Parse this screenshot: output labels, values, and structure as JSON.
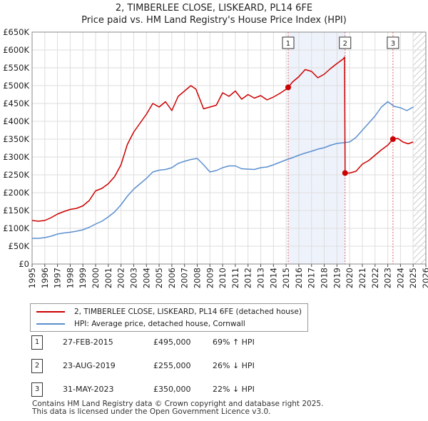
{
  "title_line1": "2, TIMBERLEE CLOSE, LISKEARD, PL14 6FE",
  "title_line2": "Price paid vs. HM Land Registry's House Price Index (HPI)",
  "colors": {
    "property": "#cc0000",
    "hpi": "#5b8fd0",
    "shade": "#eef2fb",
    "marker_line": "#dd6666",
    "hatch": "#bbbbbb",
    "grid": "#dddddd"
  },
  "legend": {
    "property_label": "2, TIMBERLEE CLOSE, LISKEARD, PL14 6FE (detached house)",
    "hpi_label": "HPI: Average price, detached house, Cornwall"
  },
  "transactions": [
    {
      "num": "1",
      "date": "27-FEB-2015",
      "price": "£495,000",
      "hpi": "69% ↑ HPI"
    },
    {
      "num": "2",
      "date": "23-AUG-2019",
      "price": "£255,000",
      "hpi": "26% ↓ HPI"
    },
    {
      "num": "3",
      "date": "31-MAY-2023",
      "price": "£350,000",
      "hpi": "22% ↓ HPI"
    }
  ],
  "footer_line1": "Contains HM Land Registry data © Crown copyright and database right 2025.",
  "footer_line2": "This data is licensed under the Open Government Licence v3.0.",
  "chart_data": {
    "type": "line",
    "title": "2, TIMBERLEE CLOSE, LISKEARD, PL14 6FE",
    "subtitle": "Price paid vs. HM Land Registry's House Price Index (HPI)",
    "xlabel": "",
    "ylabel": "",
    "xlim": [
      1995,
      2026
    ],
    "ylim": [
      0,
      650000
    ],
    "grid": true,
    "x_ticks": [
      1995,
      1996,
      1997,
      1998,
      1999,
      2000,
      2001,
      2002,
      2003,
      2004,
      2005,
      2006,
      2007,
      2008,
      2009,
      2010,
      2011,
      2012,
      2013,
      2014,
      2015,
      2016,
      2017,
      2018,
      2019,
      2020,
      2021,
      2022,
      2023,
      2024,
      2025,
      2026
    ],
    "y_ticks": [
      0,
      50000,
      100000,
      150000,
      200000,
      250000,
      300000,
      350000,
      400000,
      450000,
      500000,
      550000,
      600000,
      650000
    ],
    "y_tick_labels": [
      "£0",
      "£50K",
      "£100K",
      "£150K",
      "£200K",
      "£250K",
      "£300K",
      "£350K",
      "£400K",
      "£450K",
      "£500K",
      "£550K",
      "£600K",
      "£650K"
    ],
    "shaded_region": [
      2015.16,
      2019.64
    ],
    "hatched_from": 2025.0,
    "series": [
      {
        "name": "2, TIMBERLEE CLOSE, LISKEARD, PL14 6FE (detached house)",
        "x": [
          1995.0,
          1995.5,
          1996.0,
          1996.5,
          1997.0,
          1997.5,
          1998.0,
          1998.5,
          1999.0,
          1999.5,
          2000.0,
          2000.5,
          2001.0,
          2001.5,
          2002.0,
          2002.5,
          2003.0,
          2003.5,
          2004.0,
          2004.5,
          2005.0,
          2005.5,
          2006.0,
          2006.5,
          2007.0,
          2007.5,
          2007.9,
          2008.5,
          2009.0,
          2009.5,
          2010.0,
          2010.5,
          2011.0,
          2011.5,
          2012.0,
          2012.5,
          2013.0,
          2013.5,
          2014.0,
          2014.5,
          2015.0,
          2015.16,
          2015.5,
          2016.0,
          2016.5,
          2017.0,
          2017.5,
          2018.0,
          2018.5,
          2019.0,
          2019.5,
          2019.6,
          2019.64,
          2020.0,
          2020.5,
          2021.0,
          2021.5,
          2022.0,
          2022.5,
          2023.0,
          2023.41,
          2023.8,
          2024.2,
          2024.6,
          2025.0
        ],
        "values": [
          122000,
          120000,
          122000,
          130000,
          140000,
          147000,
          153000,
          156000,
          163000,
          178000,
          205000,
          212000,
          225000,
          245000,
          278000,
          335000,
          370000,
          395000,
          420000,
          450000,
          440000,
          455000,
          430000,
          470000,
          485000,
          500000,
          490000,
          435000,
          440000,
          445000,
          480000,
          470000,
          485000,
          462000,
          475000,
          465000,
          472000,
          460000,
          468000,
          478000,
          490000,
          495000,
          510000,
          525000,
          545000,
          540000,
          522000,
          532000,
          548000,
          562000,
          575000,
          580000,
          255000,
          255000,
          260000,
          280000,
          290000,
          305000,
          320000,
          333000,
          350000,
          352000,
          342000,
          337000,
          342000
        ]
      },
      {
        "name": "HPI: Average price, detached house, Cornwall",
        "x": [
          1995.0,
          1995.5,
          1996.0,
          1996.5,
          1997.0,
          1997.5,
          1998.0,
          1998.5,
          1999.0,
          1999.5,
          2000.0,
          2000.5,
          2001.0,
          2001.5,
          2002.0,
          2002.5,
          2003.0,
          2003.5,
          2004.0,
          2004.5,
          2005.0,
          2005.5,
          2006.0,
          2006.5,
          2007.0,
          2007.5,
          2008.0,
          2008.5,
          2009.0,
          2009.5,
          2010.0,
          2010.5,
          2011.0,
          2011.5,
          2012.0,
          2012.5,
          2013.0,
          2013.5,
          2014.0,
          2014.5,
          2015.0,
          2015.5,
          2016.0,
          2016.5,
          2017.0,
          2017.5,
          2018.0,
          2018.5,
          2019.0,
          2019.5,
          2020.0,
          2020.5,
          2021.0,
          2021.5,
          2022.0,
          2022.5,
          2023.0,
          2023.5,
          2024.0,
          2024.5,
          2025.0
        ],
        "values": [
          72000,
          72000,
          74000,
          78000,
          84000,
          87000,
          89000,
          92000,
          96000,
          103000,
          112000,
          120000,
          132000,
          146000,
          166000,
          190000,
          210000,
          225000,
          240000,
          258000,
          263000,
          265000,
          270000,
          282000,
          288000,
          293000,
          296000,
          278000,
          258000,
          262000,
          270000,
          275000,
          275000,
          267000,
          266000,
          265000,
          270000,
          272000,
          278000,
          285000,
          292000,
          298000,
          305000,
          311000,
          316000,
          322000,
          326000,
          333000,
          338000,
          340000,
          342000,
          355000,
          375000,
          395000,
          415000,
          440000,
          455000,
          442000,
          438000,
          430000,
          440000
        ]
      }
    ],
    "annotations": [
      {
        "label": "1",
        "x": 2015.16,
        "y": 495000
      },
      {
        "label": "2",
        "x": 2019.64,
        "y": 255000
      },
      {
        "label": "3",
        "x": 2023.41,
        "y": 350000
      }
    ]
  }
}
